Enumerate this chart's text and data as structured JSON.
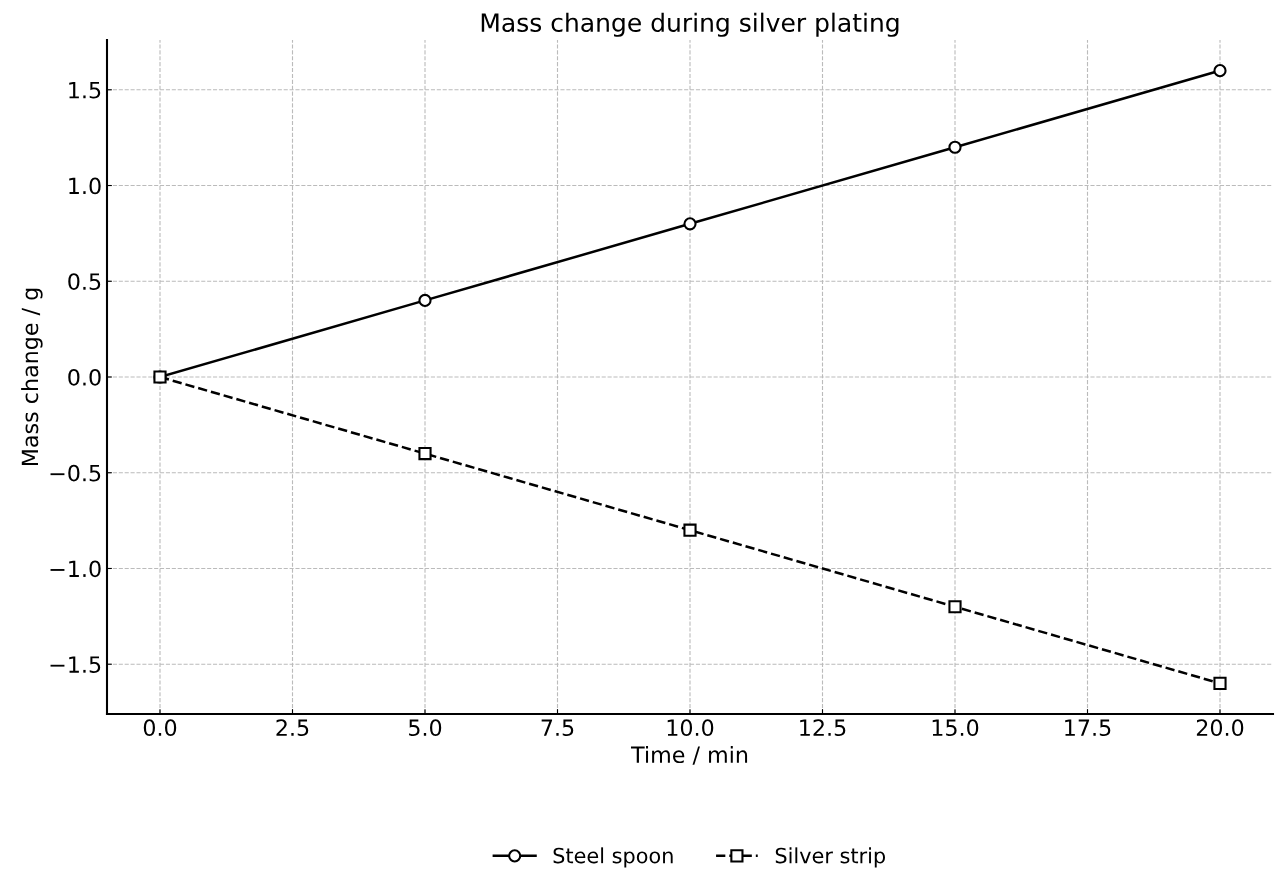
{
  "chart_data": {
    "type": "line",
    "title": "Mass change during silver plating",
    "xlabel": "Time / min",
    "ylabel": "Mass change / g",
    "x": [
      0,
      5,
      10,
      15,
      20
    ],
    "series": [
      {
        "name": "Steel spoon",
        "color": "#000000",
        "values": [
          0,
          0.4,
          0.8,
          1.2,
          1.6
        ],
        "marker": "circle",
        "line_style": "solid"
      },
      {
        "name": "Silver strip",
        "color": "#000000",
        "values": [
          0,
          -0.4,
          -0.8,
          -1.2,
          -1.6
        ],
        "marker": "square",
        "line_style": "dashed"
      }
    ],
    "xlim": [
      -1,
      21
    ],
    "xticks": [
      {
        "value": 0,
        "label": "0.0"
      },
      2.5,
      {
        "value": 5,
        "label": "5.0"
      },
      7.5,
      {
        "value": 10,
        "label": "10.0"
      },
      12.5,
      {
        "value": 15,
        "label": "15.0"
      },
      17.5,
      {
        "value": 20,
        "label": "20.0"
      }
    ],
    "ylim": [
      -1.76,
      1.76
    ],
    "yticks": [
      {
        "value": -1.5,
        "label": "−1.5"
      },
      {
        "value": -1,
        "label": "−1.0"
      },
      {
        "value": -0.5,
        "label": "−0.5"
      },
      {
        "value": 0,
        "label": "0.0"
      },
      0.5,
      {
        "value": 1,
        "label": "1.0"
      },
      1.5
    ],
    "grid": true,
    "legend": "bottom"
  }
}
